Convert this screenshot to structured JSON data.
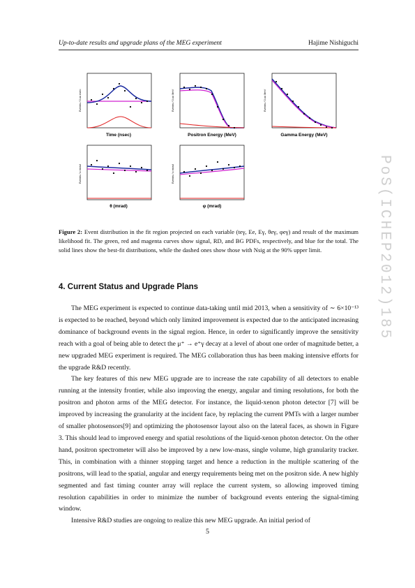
{
  "header": {
    "left": "Up-to-date results and upgrade plans of the MEG experiment",
    "right": "Hajime Nishiguchi"
  },
  "watermark": "PoS(ICHEP2012)185",
  "figure": {
    "plots": [
      {
        "xlabel": "Time (nsec)",
        "ylabel": "Events / 0.xx nsec"
      },
      {
        "xlabel": "Positron Energy (MeV)",
        "ylabel": "Events / 0.xx MeV"
      },
      {
        "xlabel": "Gamma Energy (MeV)",
        "ylabel": "Events / 0.xx MeV"
      },
      {
        "xlabel": "θ (mrad)",
        "ylabel": "Events / x mrad"
      },
      {
        "xlabel": "φ (mrad)",
        "ylabel": "Events / x mrad"
      }
    ]
  },
  "caption": {
    "label": "Figure 2:",
    "text": " Event distribution in the fit region projected on each variable (teγ, Ee, Eγ, θeγ, φeγ) and result of the maximum likelihood fit. The green, red and magenta curves show signal, RD, and BG PDFs, respectively, and blue for the total. The solid lines show the best-fit distributions, while the dashed ones show those with Nsig at the 90% upper limit."
  },
  "section": "4. Current Status and Upgrade Plans",
  "paragraphs": [
    "The MEG experiment is expected to continue data-taking until mid 2013, when a sensitivity of ∼ 6×10⁻¹³ is expected to be reached, beyond which only limited improvement is expected due to the anticipated increasing dominance of background events in the signal region. Hence, in order to significantly improve the sensitivity reach with a goal of being able to detect the μ⁺ → e⁺γ decay at a level of about one order of magnitude better, a new upgraded MEG experiment is required. The MEG collaboration thus has been making intensive efforts for the upgrade R&D recently.",
    "The key features of this new MEG upgrade are to increase the rate capability of all detectors to enable running at the intensity frontier, while also improving the energy, angular and timing resolutions, for both the positron and photon arms of the MEG detector. For instance, the liquid-xenon photon detector [7] will be improved by increasing the granularity at the incident face, by replacing the current PMTs with a larger number of smaller photosensors[9] and optimizing the photosensor layout also on the lateral faces, as shown in Figure 3. This should lead to improved energy and spatial resolutions of the liquid-xenon photon detector. On the other hand, positron spectrometer will also be improved by a new low-mass, single volume, high granularity tracker. This, in combination with a thinner stopping target and hence a reduction in the multiple scattering of the positrons, will lead to the spatial, angular and energy requirements being met on the positron side. A new highly segmented and fast timing counter array will replace the current system, so allowing improved timing resolution capabilities in order to minimize the number of background events entering the signal-timing window.",
    "Intensive R&D studies are ongoing to realize this new MEG upgrade. An initial period of"
  ],
  "page_number": "5"
}
